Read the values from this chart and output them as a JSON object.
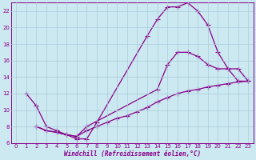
{
  "xlabel": "Windchill (Refroidissement éolien,°C)",
  "bg_color": "#cce8f0",
  "line_color": "#880088",
  "grid_color": "#aaccdd",
  "xlim": [
    -0.5,
    23.5
  ],
  "ylim": [
    6,
    23
  ],
  "xticks": [
    0,
    1,
    2,
    3,
    4,
    5,
    6,
    7,
    8,
    9,
    10,
    11,
    12,
    13,
    14,
    15,
    16,
    17,
    18,
    19,
    20,
    21,
    22,
    23
  ],
  "yticks": [
    6,
    8,
    10,
    12,
    14,
    16,
    18,
    20,
    22
  ],
  "curve1_x": [
    1,
    2,
    3,
    4,
    5,
    6,
    7,
    8,
    13,
    14,
    15,
    16,
    17,
    18,
    19,
    20,
    21,
    22,
    23
  ],
  "curve1_y": [
    12.0,
    10.5,
    8.0,
    7.5,
    7.0,
    6.5,
    6.5,
    8.5,
    19.0,
    21.0,
    22.5,
    22.5,
    23.0,
    22.0,
    20.3,
    17.0,
    15.0,
    13.5,
    13.5
  ],
  "curve2_x": [
    2,
    3,
    4,
    5,
    6,
    7,
    14,
    15,
    16,
    17,
    18,
    19,
    20,
    21,
    22,
    23
  ],
  "curve2_y": [
    8.0,
    7.5,
    7.3,
    7.0,
    6.8,
    8.0,
    12.5,
    15.5,
    17.0,
    17.0,
    16.5,
    15.5,
    15.0,
    15.0,
    15.0,
    13.5
  ],
  "curve3_x": [
    2,
    3,
    4,
    5,
    6,
    7,
    8,
    9,
    10,
    11,
    12,
    13,
    14,
    15,
    16,
    17,
    18,
    19,
    20,
    21,
    22,
    23
  ],
  "curve3_y": [
    8.0,
    7.5,
    7.3,
    7.0,
    6.8,
    7.5,
    8.0,
    8.5,
    9.0,
    9.3,
    9.8,
    10.3,
    11.0,
    11.5,
    12.0,
    12.3,
    12.5,
    12.8,
    13.0,
    13.2,
    13.4,
    13.5
  ]
}
